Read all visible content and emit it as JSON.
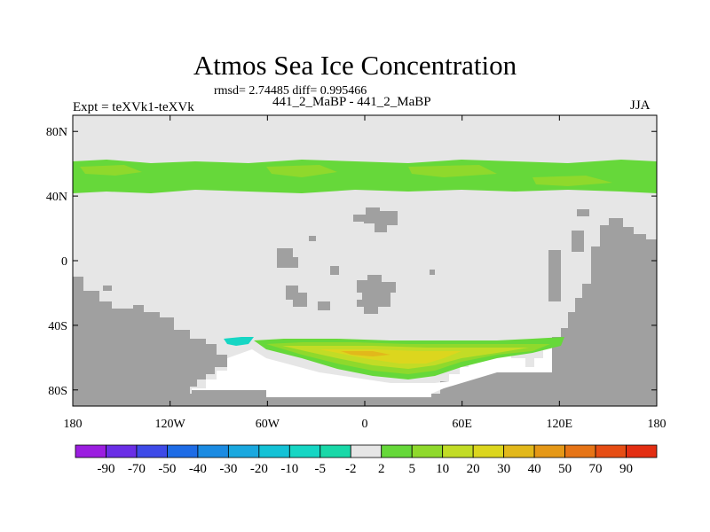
{
  "header": {
    "title": "Atmos Sea Ice Concentration",
    "stats": "rmsd= 2.74485 diff= 0.995466",
    "experiment": "Expt = teXVk1-teXVk",
    "runs": "441_2_MaBP - 441_2_MaBP",
    "season": "JJA"
  },
  "chart_data": {
    "type": "heatmap",
    "title": "Atmos Sea Ice Concentration",
    "subtitle": "rmsd= 2.74485 diff= 0.995466",
    "xlabel": "",
    "ylabel": "",
    "x_ticks": [
      "180",
      "120W",
      "60W",
      "0",
      "60E",
      "120E",
      "180"
    ],
    "x_tick_values": [
      -180,
      -120,
      -60,
      0,
      60,
      120,
      180
    ],
    "y_ticks": [
      "80N",
      "40N",
      "0",
      "40S",
      "80S"
    ],
    "y_tick_values": [
      80,
      40,
      0,
      -40,
      -80
    ],
    "xlim": [
      -180,
      180
    ],
    "ylim": [
      -90,
      90
    ],
    "colorbar": {
      "labels": [
        "-90",
        "-70",
        "-50",
        "-40",
        "-30",
        "-20",
        "-10",
        "-5",
        "-2",
        "2",
        "5",
        "10",
        "20",
        "30",
        "40",
        "50",
        "70",
        "90"
      ],
      "colors": [
        "#9b1ee0",
        "#6a2ee6",
        "#3e4ae8",
        "#1e6ce6",
        "#1b8be2",
        "#1aa8df",
        "#14c2d6",
        "#16d6c4",
        "#19d8a8",
        "#e6e6e6",
        "#66d83a",
        "#8fd92c",
        "#c2dc26",
        "#dcd61e",
        "#e2b81b",
        "#e59817",
        "#e67416",
        "#e64d14",
        "#e32e12"
      ]
    },
    "fields": {
      "background": "#e6e6e6",
      "land": "#a0a0a0",
      "ocean_missing": "#ffffff"
    },
    "regions": [
      {
        "name": "Northern mid-latitude band",
        "lat_range": [
          44,
          62
        ],
        "value_class": "5 to 10"
      },
      {
        "name": "Southern ocean band",
        "lat_range": [
          -73,
          -50
        ],
        "value_class": "10 to 40"
      },
      {
        "name": "Weddell Sea patch",
        "lat_range": [
          -53,
          -48
        ],
        "value_class": "-10 to -5"
      }
    ]
  }
}
